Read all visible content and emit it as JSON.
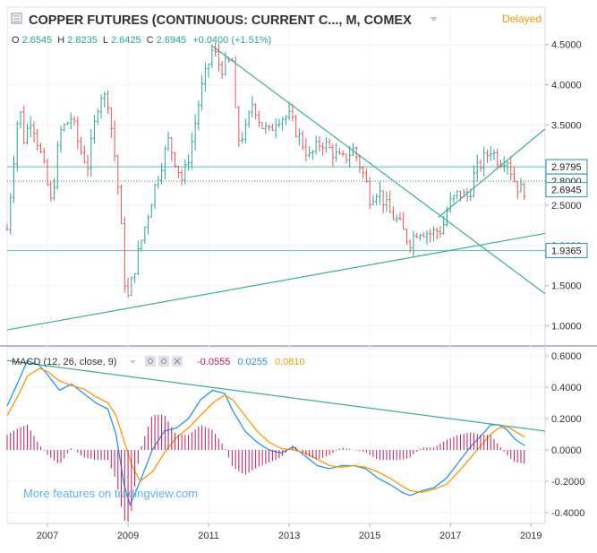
{
  "header": {
    "symbol_title": "COPPER FUTURES (CONTINUOUS: CURRENT C..., M, COMEX",
    "status": "Delayed"
  },
  "ohlc": {
    "o_label": "O",
    "o_value": "2.6545",
    "h_label": "H",
    "h_value": "2.8235",
    "l_label": "L",
    "l_value": "2.6425",
    "c_label": "C",
    "c_value": "2.6945",
    "change": "+0.0400 (+1.51%)"
  },
  "price_axis": {
    "ticks": [
      "4.5000",
      "4.0000",
      "3.5000",
      "3.0000",
      "2.5000",
      "2.0000",
      "1.5000",
      "1.0000"
    ],
    "tick_values": [
      4.5,
      4.0,
      3.5,
      3.0,
      2.5,
      2.0,
      1.5,
      1.0
    ],
    "range": [
      0.75,
      4.72
    ]
  },
  "price_labels": [
    {
      "text": "2.9795",
      "value": 2.9795,
      "color": "#2196a0"
    },
    {
      "text": "2.8000",
      "value": 2.8,
      "color": "#2196a0"
    },
    {
      "text": "2.6945",
      "value": 2.6945,
      "color": "#26a69a"
    },
    {
      "text": "1.9365",
      "value": 1.9365,
      "color": "#2196a0"
    }
  ],
  "macd_header": {
    "label": "MACD (12, 26, close, 9)",
    "hist": "-0.0555",
    "macd": "0.0255",
    "signal": "0.0810"
  },
  "macd_axis": {
    "ticks": [
      "0.6000",
      "0.4000",
      "0.2000",
      "0.0000",
      "-0.2000",
      "-0.4000"
    ],
    "tick_values": [
      0.6,
      0.4,
      0.2,
      0.0,
      -0.2,
      -0.4
    ],
    "range": [
      -0.4,
      0.6
    ]
  },
  "time_axis": {
    "labels": [
      "2007",
      "2009",
      "2011",
      "2013",
      "2015",
      "2017",
      "2019"
    ],
    "years": [
      2007,
      2009,
      2011,
      2013,
      2015,
      2017,
      2019
    ]
  },
  "watermark": "More features on tradingview.com",
  "colors": {
    "bull": "#26a69a",
    "bear": "#ef5350",
    "trend": "#38b09a",
    "hline": "#5bbfb8",
    "macd": "#2196f3",
    "signal": "#ff9800",
    "hist": "#c2185b",
    "axis_text": "#333333"
  },
  "chart_data": [
    {
      "type": "candlestick",
      "title": "COPPER FUTURES (CONTINUOUS: CURRENT C..., M, COMEX",
      "x_range": [
        2006.0,
        2019.35
      ],
      "ylim": [
        0.75,
        4.72
      ],
      "monthly_close_path": [
        [
          2006.0,
          2.2
        ],
        [
          2006.3,
          3.8
        ],
        [
          2006.4,
          3.3
        ],
        [
          2006.6,
          3.6
        ],
        [
          2006.9,
          3.0
        ],
        [
          2007.1,
          2.5
        ],
        [
          2007.3,
          3.4
        ],
        [
          2007.6,
          3.6
        ],
        [
          2007.8,
          3.2
        ],
        [
          2008.0,
          3.0
        ],
        [
          2008.3,
          3.9
        ],
        [
          2008.5,
          3.8
        ],
        [
          2008.65,
          3.2
        ],
        [
          2008.8,
          2.5
        ],
        [
          2008.9,
          1.6
        ],
        [
          2009.0,
          1.35
        ],
        [
          2009.2,
          1.8
        ],
        [
          2009.5,
          2.4
        ],
        [
          2009.7,
          2.8
        ],
        [
          2010.0,
          3.3
        ],
        [
          2010.35,
          2.8
        ],
        [
          2010.55,
          3.2
        ],
        [
          2010.8,
          3.9
        ],
        [
          2011.1,
          4.45
        ],
        [
          2011.3,
          4.2
        ],
        [
          2011.6,
          4.3
        ],
        [
          2011.7,
          3.3
        ],
        [
          2011.9,
          3.4
        ],
        [
          2012.1,
          3.8
        ],
        [
          2012.3,
          3.5
        ],
        [
          2012.5,
          3.4
        ],
        [
          2012.7,
          3.6
        ],
        [
          2013.0,
          3.6
        ],
        [
          2013.3,
          3.3
        ],
        [
          2013.5,
          3.1
        ],
        [
          2013.8,
          3.3
        ],
        [
          2014.0,
          3.2
        ],
        [
          2014.3,
          3.05
        ],
        [
          2014.6,
          3.2
        ],
        [
          2014.9,
          2.8
        ],
        [
          2015.0,
          2.6
        ],
        [
          2015.2,
          2.7
        ],
        [
          2015.5,
          2.4
        ],
        [
          2015.7,
          2.3
        ],
        [
          2015.9,
          2.1
        ],
        [
          2016.0,
          2.05
        ],
        [
          2016.2,
          2.2
        ],
        [
          2016.5,
          2.15
        ],
        [
          2016.8,
          2.2
        ],
        [
          2016.95,
          2.5
        ],
        [
          2017.2,
          2.65
        ],
        [
          2017.45,
          2.6
        ],
        [
          2017.6,
          2.9
        ],
        [
          2017.8,
          3.05
        ],
        [
          2018.0,
          3.2
        ],
        [
          2018.2,
          3.05
        ],
        [
          2018.4,
          3.1
        ],
        [
          2018.55,
          2.85
        ],
        [
          2018.7,
          2.7
        ],
        [
          2018.85,
          2.69
        ]
      ],
      "horizontal_levels": [
        2.9795,
        1.9365
      ],
      "last_price": 2.6945,
      "trend_lines": [
        {
          "from": [
            2011.1,
            4.48
          ],
          "to": [
            2019.35,
            1.4
          ]
        },
        {
          "from": [
            2006.0,
            0.95
          ],
          "to": [
            2019.35,
            2.15
          ]
        },
        {
          "from": [
            2016.7,
            2.35
          ],
          "to": [
            2019.35,
            3.45
          ]
        }
      ]
    },
    {
      "type": "line",
      "title": "MACD (12, 26, close, 9)",
      "ylim": [
        -0.4,
        0.6
      ],
      "series": [
        {
          "name": "MACD",
          "points": [
            [
              2006.0,
              0.28
            ],
            [
              2006.3,
              0.45
            ],
            [
              2006.5,
              0.57
            ],
            [
              2006.8,
              0.54
            ],
            [
              2007.0,
              0.48
            ],
            [
              2007.3,
              0.38
            ],
            [
              2007.6,
              0.42
            ],
            [
              2007.9,
              0.36
            ],
            [
              2008.2,
              0.3
            ],
            [
              2008.5,
              0.26
            ],
            [
              2008.7,
              0.1
            ],
            [
              2008.9,
              -0.22
            ],
            [
              2009.05,
              -0.35
            ],
            [
              2009.3,
              -0.2
            ],
            [
              2009.6,
              0.0
            ],
            [
              2009.9,
              0.12
            ],
            [
              2010.2,
              0.14
            ],
            [
              2010.5,
              0.2
            ],
            [
              2010.8,
              0.32
            ],
            [
              2011.1,
              0.38
            ],
            [
              2011.4,
              0.36
            ],
            [
              2011.6,
              0.25
            ],
            [
              2011.9,
              0.12
            ],
            [
              2012.2,
              0.05
            ],
            [
              2012.5,
              0.0
            ],
            [
              2012.8,
              -0.02
            ],
            [
              2013.1,
              0.02
            ],
            [
              2013.4,
              -0.04
            ],
            [
              2013.7,
              -0.1
            ],
            [
              2014.0,
              -0.12
            ],
            [
              2014.3,
              -0.1
            ],
            [
              2014.6,
              -0.1
            ],
            [
              2014.9,
              -0.12
            ],
            [
              2015.2,
              -0.18
            ],
            [
              2015.5,
              -0.22
            ],
            [
              2015.8,
              -0.27
            ],
            [
              2016.0,
              -0.29
            ],
            [
              2016.3,
              -0.26
            ],
            [
              2016.6,
              -0.24
            ],
            [
              2016.9,
              -0.18
            ],
            [
              2017.2,
              -0.08
            ],
            [
              2017.5,
              0.02
            ],
            [
              2017.8,
              0.1
            ],
            [
              2018.0,
              0.16
            ],
            [
              2018.2,
              0.16
            ],
            [
              2018.4,
              0.13
            ],
            [
              2018.6,
              0.07
            ],
            [
              2018.85,
              0.0255
            ]
          ]
        },
        {
          "name": "Signal",
          "points": [
            [
              2006.0,
              0.22
            ],
            [
              2006.3,
              0.36
            ],
            [
              2006.5,
              0.47
            ],
            [
              2006.8,
              0.52
            ],
            [
              2007.0,
              0.5
            ],
            [
              2007.3,
              0.44
            ],
            [
              2007.6,
              0.41
            ],
            [
              2007.9,
              0.39
            ],
            [
              2008.2,
              0.34
            ],
            [
              2008.5,
              0.3
            ],
            [
              2008.7,
              0.22
            ],
            [
              2008.9,
              0.06
            ],
            [
              2009.1,
              -0.1
            ],
            [
              2009.3,
              -0.2
            ],
            [
              2009.6,
              -0.14
            ],
            [
              2009.9,
              -0.02
            ],
            [
              2010.2,
              0.08
            ],
            [
              2010.5,
              0.14
            ],
            [
              2010.8,
              0.22
            ],
            [
              2011.1,
              0.3
            ],
            [
              2011.4,
              0.35
            ],
            [
              2011.6,
              0.32
            ],
            [
              2011.9,
              0.22
            ],
            [
              2012.2,
              0.12
            ],
            [
              2012.5,
              0.05
            ],
            [
              2012.8,
              0.01
            ],
            [
              2013.1,
              0.0
            ],
            [
              2013.4,
              -0.02
            ],
            [
              2013.7,
              -0.06
            ],
            [
              2014.0,
              -0.1
            ],
            [
              2014.3,
              -0.11
            ],
            [
              2014.6,
              -0.1
            ],
            [
              2014.9,
              -0.11
            ],
            [
              2015.2,
              -0.14
            ],
            [
              2015.5,
              -0.18
            ],
            [
              2015.8,
              -0.23
            ],
            [
              2016.0,
              -0.26
            ],
            [
              2016.3,
              -0.27
            ],
            [
              2016.6,
              -0.25
            ],
            [
              2016.9,
              -0.22
            ],
            [
              2017.2,
              -0.14
            ],
            [
              2017.5,
              -0.05
            ],
            [
              2017.8,
              0.04
            ],
            [
              2018.0,
              0.1
            ],
            [
              2018.2,
              0.14
            ],
            [
              2018.4,
              0.15
            ],
            [
              2018.6,
              0.12
            ],
            [
              2018.85,
              0.081
            ]
          ]
        }
      ],
      "histogram_last": -0.0555
    }
  ]
}
